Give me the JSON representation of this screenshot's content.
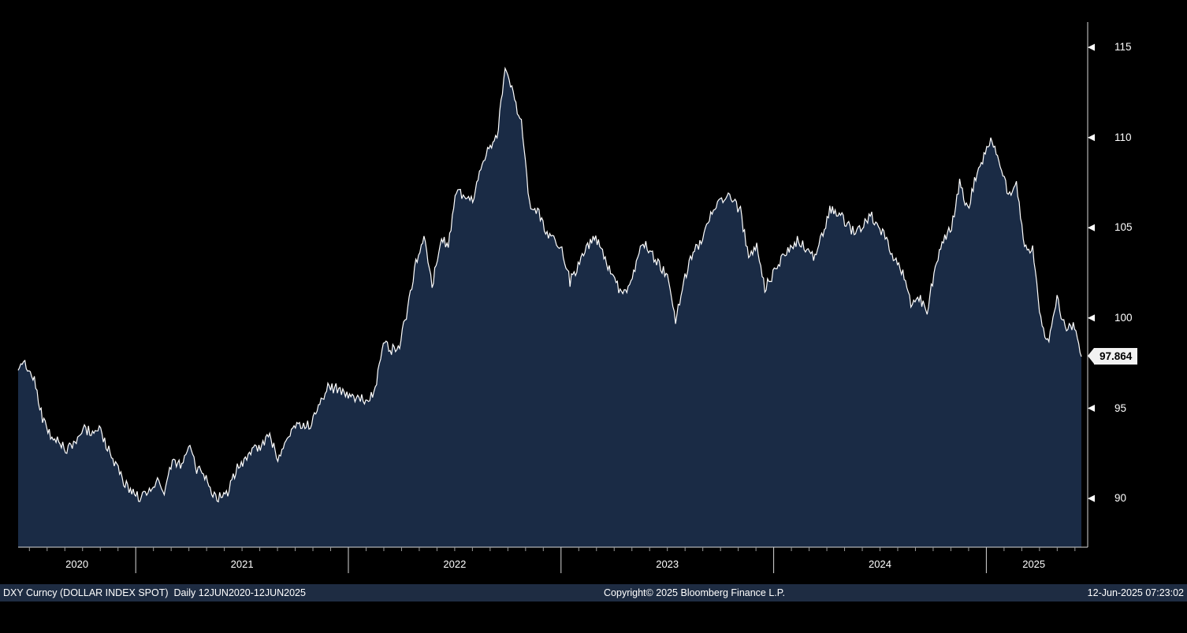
{
  "chart_data": {
    "type": "area",
    "title": "DXY Curncy (DOLLAR INDEX SPOT)",
    "period_label": "Daily 12JUN2020-12JUN2025",
    "x_start": 2020.447,
    "x_end": 2025.447,
    "x_tick_years": [
      "2020",
      "2021",
      "2022",
      "2023",
      "2024",
      "2025"
    ],
    "y_ticks": [
      90,
      95,
      100,
      105,
      110,
      115
    ],
    "ylim": [
      87.3,
      116.4
    ],
    "grid": false,
    "legend_position": "none",
    "last_price": 97.864,
    "last_price_label": "97.864",
    "colors": {
      "background": "#000000",
      "line": "#ffffff",
      "fill": "#1a2b45",
      "axis": "#d8d8d8",
      "tick_minor": "#9a9a9a",
      "label_text": "#ffffff",
      "badge_bg": "#f2f2f2",
      "badge_text": "#000000",
      "footer_bg": "#1e2c42",
      "footer_text": "#ffffff"
    },
    "series": [
      {
        "name": "DXY Index Spot",
        "values": [
          97.1,
          97.4,
          96.7,
          94.4,
          93.4,
          93.2,
          92.7,
          93.0,
          93.9,
          93.7,
          94.0,
          92.8,
          91.8,
          91.0,
          90.3,
          90.1,
          90.2,
          91.0,
          90.4,
          92.0,
          91.9,
          93.0,
          91.6,
          91.3,
          90.3,
          90.0,
          90.5,
          91.8,
          92.1,
          92.9,
          92.8,
          93.5,
          92.1,
          93.2,
          94.05,
          93.95,
          94.1,
          95.1,
          96.1,
          96.1,
          96.0,
          95.7,
          95.6,
          95.5,
          96.0,
          98.6,
          98.2,
          98.6,
          100.5,
          103.0,
          104.6,
          101.7,
          104.2,
          104.2,
          107.0,
          106.7,
          106.6,
          108.1,
          109.5,
          110.0,
          114.0,
          112.3,
          110.8,
          106.3,
          106.0,
          104.9,
          104.3,
          103.9,
          102.0,
          102.9,
          103.9,
          104.5,
          103.7,
          102.5,
          101.6,
          101.7,
          102.7,
          104.2,
          103.6,
          102.9,
          102.3,
          99.9,
          102.0,
          103.4,
          104.2,
          105.3,
          106.2,
          106.7,
          106.6,
          105.9,
          103.4,
          104.0,
          101.7,
          102.4,
          103.2,
          103.9,
          104.3,
          103.9,
          103.4,
          104.5,
          106.0,
          105.9,
          105.3,
          104.7,
          104.9,
          105.8,
          104.9,
          104.4,
          103.2,
          102.5,
          100.9,
          101.1,
          100.4,
          102.9,
          104.3,
          105.0,
          107.5,
          106.0,
          107.8,
          109.0,
          109.9,
          108.4,
          106.8,
          107.6,
          103.7,
          104.0,
          99.8,
          98.6,
          101.0,
          99.4,
          99.6,
          97.864
        ]
      }
    ]
  },
  "footer": {
    "left": "DXY Curncy (DOLLAR INDEX SPOT)  Daily 12JUN2020-12JUN2025",
    "center": "Copyright© 2025 Bloomberg Finance L.P.",
    "right": "12-Jun-2025 07:23:02"
  }
}
